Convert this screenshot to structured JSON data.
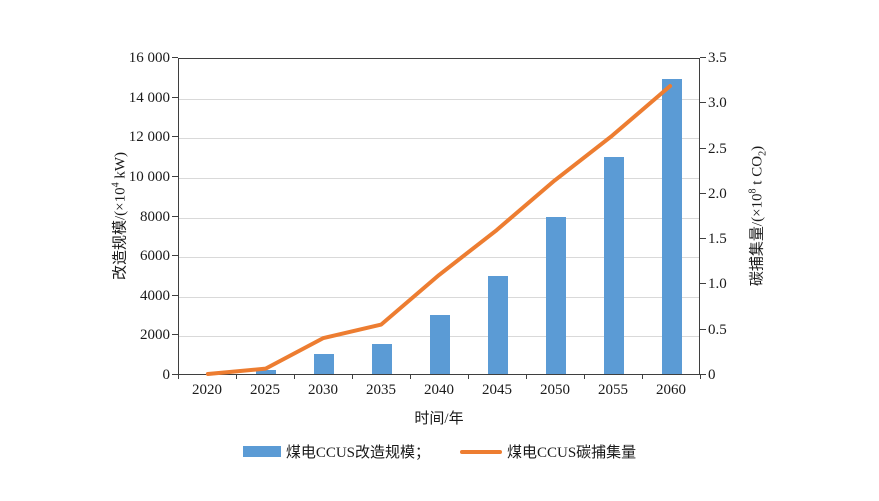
{
  "chart_data": {
    "type": "bar+line combo",
    "categories": [
      "2020",
      "2025",
      "2030",
      "2035",
      "2040",
      "2045",
      "2050",
      "2055",
      "2060"
    ],
    "series": [
      {
        "name": "煤电CCUS改造规模",
        "type": "bar",
        "axis": "left",
        "color": "#5B9BD5",
        "values": [
          0,
          200,
          1000,
          1500,
          3000,
          5000,
          8000,
          11000,
          15000
        ]
      },
      {
        "name": "煤电CCUS碳捕集量",
        "type": "line",
        "axis": "right",
        "color": "#ED7D31",
        "values": [
          0,
          0.06,
          0.4,
          0.55,
          1.1,
          1.6,
          2.15,
          2.65,
          3.2
        ]
      }
    ],
    "xlabel": "时间/年",
    "left_axis": {
      "title_prefix": "改造规模/(×10",
      "title_sup": "4",
      "title_suffix": " kW)",
      "min": 0,
      "max": 16000,
      "tick_step": 2000,
      "tick_labels": [
        "0",
        "2000",
        "4000",
        "6000",
        "8000",
        "10 000",
        "12 000",
        "14 000",
        "16 000"
      ]
    },
    "right_axis": {
      "title_prefix": "碳捕集量/(×10",
      "title_sup": "8",
      "title_mid": " t CO",
      "title_sub": "2",
      "title_suffix": ")",
      "min": 0,
      "max": 3.5,
      "tick_step": 0.5,
      "tick_labels": [
        "0",
        "0.5",
        "1.0",
        "1.5",
        "2.0",
        "2.5",
        "3.0",
        "3.5"
      ]
    },
    "grid": "horizontal light-gray lines at every 2000",
    "legend_position": "bottom-center"
  },
  "legend": {
    "items": [
      {
        "label": "煤电CCUS改造规模；",
        "marker": "bar-swatch"
      },
      {
        "label": "煤电CCUS碳捕集量",
        "marker": "line-swatch"
      }
    ]
  },
  "colors": {
    "bar": "#5B9BD5",
    "line": "#ED7D31",
    "grid": "#D9D9D9",
    "axis": "#3F3F3F",
    "text": "#1A1A1A",
    "background": "#FFFFFF"
  }
}
